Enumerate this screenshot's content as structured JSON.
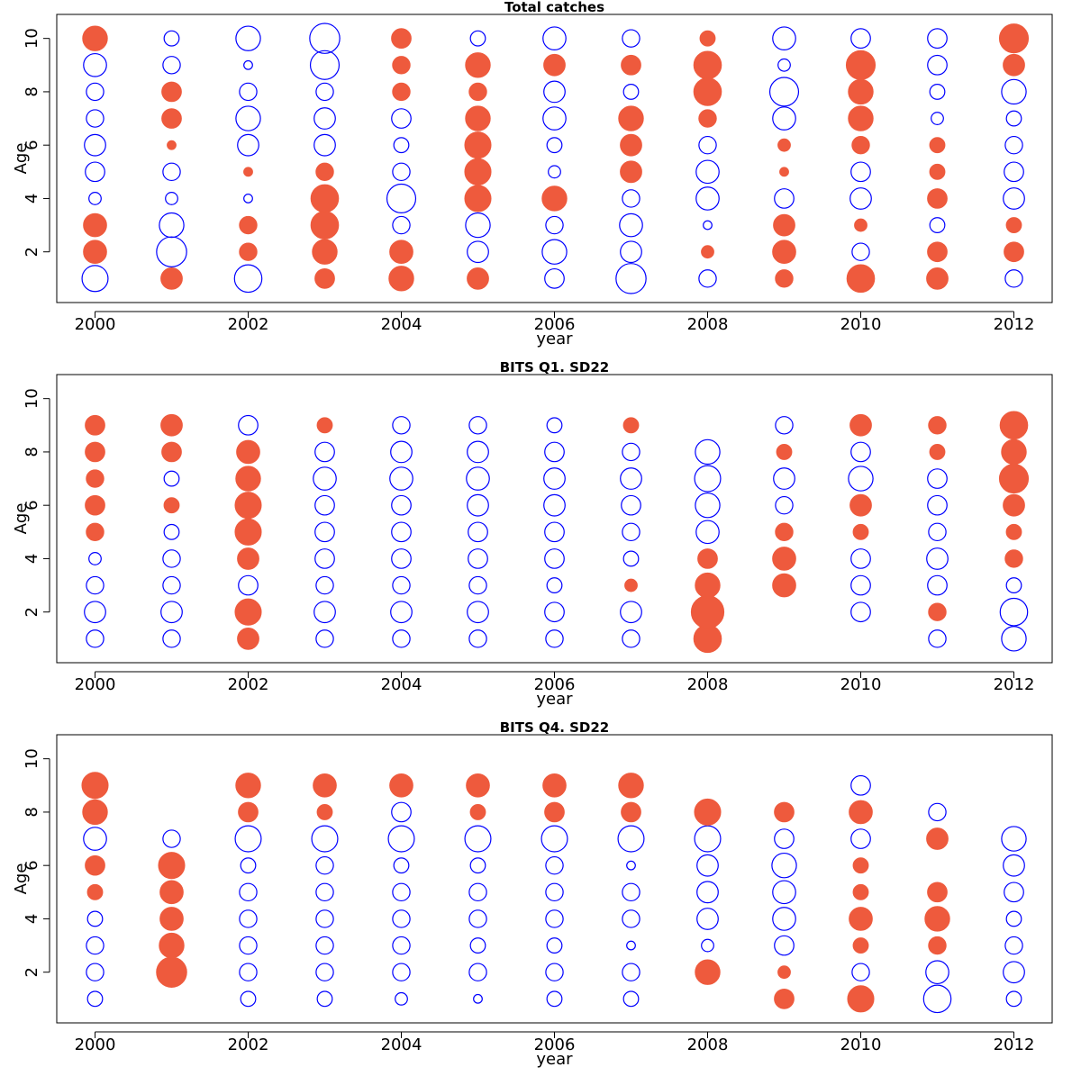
{
  "colors": {
    "positive": "#ee5a3d",
    "negative": "#0000ff",
    "axis": "#000000"
  },
  "chart_data": [
    {
      "type": "scatter",
      "subtype": "bubble",
      "title": "Total catches",
      "xlabel": "year",
      "ylabel": "Age",
      "xlim": [
        1999.5,
        2012.5
      ],
      "ylim": [
        0.1,
        10.9
      ],
      "x_ticks": [
        2000,
        2002,
        2004,
        2006,
        2008,
        2010,
        2012
      ],
      "y_ticks": [
        2,
        4,
        6,
        8,
        10
      ],
      "grid": false,
      "legend": "none",
      "ages": [
        1,
        2,
        3,
        4,
        5,
        6,
        7,
        8,
        9,
        10
      ],
      "years": [
        2000,
        2001,
        2002,
        2003,
        2004,
        2005,
        2006,
        2007,
        2008,
        2009,
        2010,
        2011,
        2012
      ],
      "residuals": [
        [
          -0.9,
          0.7,
          0.7,
          -0.2,
          -0.5,
          -0.6,
          -0.4,
          -0.4,
          -0.7,
          0.8
        ],
        [
          0.6,
          -1.2,
          -0.8,
          -0.2,
          -0.4,
          0.1,
          0.5,
          0.5,
          -0.4,
          -0.3
        ],
        [
          -1.0,
          0.4,
          0.4,
          -0.1,
          0.1,
          -0.6,
          -0.8,
          -0.4,
          -0.1,
          -0.8
        ],
        [
          0.5,
          0.8,
          1.0,
          1.0,
          0.4,
          -0.6,
          -0.6,
          -0.4,
          -1.1,
          -1.2
        ],
        [
          0.8,
          0.7,
          -0.4,
          -1.1,
          -0.4,
          -0.3,
          -0.5,
          0.4,
          0.4,
          0.5
        ],
        [
          0.6,
          -0.6,
          -0.8,
          0.9,
          0.9,
          0.9,
          0.8,
          0.4,
          0.8,
          -0.3
        ],
        [
          -0.5,
          -0.8,
          -0.4,
          0.8,
          -0.2,
          -0.3,
          -0.7,
          -0.6,
          0.6,
          -0.7
        ],
        [
          -1.2,
          -0.6,
          -0.7,
          -0.4,
          0.6,
          0.6,
          0.8,
          -0.3,
          0.5,
          -0.4
        ],
        [
          -0.4,
          0.2,
          -0.1,
          -0.7,
          -0.7,
          -0.4,
          0.4,
          1.0,
          1.0,
          0.3
        ],
        [
          0.4,
          0.7,
          0.6,
          -0.5,
          0.1,
          0.2,
          -0.7,
          -1.1,
          -0.2,
          -0.7
        ],
        [
          1.0,
          -0.4,
          0.2,
          -0.6,
          -0.5,
          0.4,
          0.8,
          0.8,
          1.1,
          -0.5
        ],
        [
          0.6,
          0.5,
          -0.3,
          0.5,
          0.3,
          0.3,
          -0.2,
          -0.3,
          -0.5,
          -0.5
        ],
        [
          -0.4,
          0.5,
          0.3,
          -0.6,
          -0.5,
          -0.4,
          -0.3,
          -0.8,
          0.6,
          1.1
        ]
      ]
    },
    {
      "type": "scatter",
      "subtype": "bubble",
      "title": "BITS Q1. SD22",
      "xlabel": "year",
      "ylabel": "Age",
      "xlim": [
        1999.5,
        2012.5
      ],
      "ylim": [
        0.1,
        10.9
      ],
      "x_ticks": [
        2000,
        2002,
        2004,
        2006,
        2008,
        2010,
        2012
      ],
      "y_ticks": [
        2,
        4,
        6,
        8,
        10
      ],
      "grid": false,
      "legend": "none",
      "ages": [
        1,
        2,
        3,
        4,
        5,
        6,
        7,
        8,
        9
      ],
      "years": [
        2000,
        2001,
        2002,
        2003,
        2004,
        2005,
        2006,
        2007,
        2008,
        2009,
        2010,
        2011,
        2012
      ],
      "residuals": [
        [
          -0.4,
          -0.6,
          -0.4,
          -0.2,
          0.4,
          0.5,
          0.4,
          0.5,
          0.5
        ],
        [
          -0.4,
          -0.6,
          -0.4,
          -0.4,
          -0.3,
          0.3,
          -0.3,
          0.5,
          0.6
        ],
        [
          0.6,
          0.9,
          -0.5,
          0.6,
          0.9,
          0.9,
          0.8,
          0.7,
          -0.5
        ],
        [
          -0.4,
          -0.6,
          -0.4,
          -0.5,
          -0.5,
          -0.5,
          -0.7,
          -0.5,
          0.3
        ],
        [
          -0.4,
          -0.6,
          -0.4,
          -0.5,
          -0.5,
          -0.5,
          -0.7,
          -0.6,
          -0.4
        ],
        [
          -0.4,
          -0.6,
          -0.4,
          -0.5,
          -0.5,
          -0.6,
          -0.7,
          -0.6,
          -0.4
        ],
        [
          -0.4,
          -0.5,
          -0.3,
          -0.5,
          -0.5,
          -0.6,
          -0.6,
          -0.5,
          -0.3
        ],
        [
          -0.4,
          -0.6,
          0.2,
          -0.3,
          -0.4,
          -0.5,
          -0.6,
          -0.4,
          0.3
        ],
        [
          1.0,
          1.4,
          0.8,
          0.5,
          -0.7,
          -0.8,
          -0.9,
          -0.8,
          null
        ],
        [
          null,
          null,
          0.7,
          0.7,
          0.4,
          -0.4,
          -0.6,
          0.3,
          -0.4
        ],
        [
          null,
          -0.5,
          -0.5,
          -0.5,
          0.3,
          0.6,
          -0.8,
          -0.5,
          0.6
        ],
        [
          -0.4,
          0.4,
          -0.5,
          -0.6,
          -0.4,
          -0.5,
          -0.5,
          0.3,
          0.4
        ],
        [
          -0.8,
          -1.0,
          -0.3,
          0.4,
          0.3,
          0.6,
          1.1,
          0.8,
          1.0
        ]
      ]
    },
    {
      "type": "scatter",
      "subtype": "bubble",
      "title": "BITS Q4. SD22",
      "xlabel": "year",
      "ylabel": "Age",
      "xlim": [
        1999.5,
        2012.5
      ],
      "ylim": [
        0.1,
        10.9
      ],
      "x_ticks": [
        2000,
        2002,
        2004,
        2006,
        2008,
        2010,
        2012
      ],
      "y_ticks": [
        2,
        4,
        6,
        8,
        10
      ],
      "grid": false,
      "legend": "none",
      "ages": [
        1,
        2,
        3,
        4,
        5,
        6,
        7,
        8,
        9
      ],
      "years": [
        2000,
        2001,
        2002,
        2003,
        2004,
        2005,
        2006,
        2007,
        2008,
        2009,
        2010,
        2011,
        2012
      ],
      "residuals": [
        [
          -0.3,
          -0.4,
          -0.4,
          -0.3,
          0.3,
          0.5,
          -0.7,
          0.8,
          0.9
        ],
        [
          null,
          1.2,
          0.8,
          0.7,
          0.7,
          0.9,
          -0.4,
          null,
          null
        ],
        [
          -0.3,
          -0.4,
          -0.4,
          -0.4,
          -0.4,
          -0.3,
          -0.9,
          0.5,
          0.8
        ],
        [
          -0.3,
          -0.4,
          -0.4,
          -0.4,
          -0.4,
          -0.4,
          -0.9,
          0.3,
          0.7
        ],
        [
          -0.2,
          -0.4,
          -0.4,
          -0.4,
          -0.4,
          -0.3,
          -0.9,
          -0.5,
          0.7
        ],
        [
          -0.1,
          -0.4,
          -0.3,
          -0.4,
          -0.4,
          -0.3,
          -0.9,
          0.3,
          0.7
        ],
        [
          -0.3,
          -0.4,
          -0.3,
          -0.4,
          -0.4,
          -0.4,
          -0.9,
          0.5,
          0.7
        ],
        [
          -0.3,
          -0.4,
          -0.1,
          -0.4,
          -0.4,
          -0.1,
          -0.9,
          0.5,
          0.8
        ],
        [
          null,
          0.8,
          -0.2,
          -0.6,
          -0.6,
          -0.6,
          -0.9,
          0.9,
          null
        ],
        [
          0.5,
          0.2,
          -0.5,
          -0.7,
          -0.7,
          -0.8,
          -0.5,
          0.5,
          null
        ],
        [
          0.9,
          -0.4,
          0.3,
          0.7,
          0.3,
          0.3,
          -0.5,
          0.7,
          -0.5
        ],
        [
          -1.0,
          -0.7,
          0.4,
          0.8,
          0.5,
          null,
          0.6,
          -0.4,
          null
        ],
        [
          -0.3,
          -0.6,
          -0.4,
          -0.3,
          -0.5,
          -0.6,
          -0.8,
          null,
          null
        ]
      ]
    }
  ]
}
